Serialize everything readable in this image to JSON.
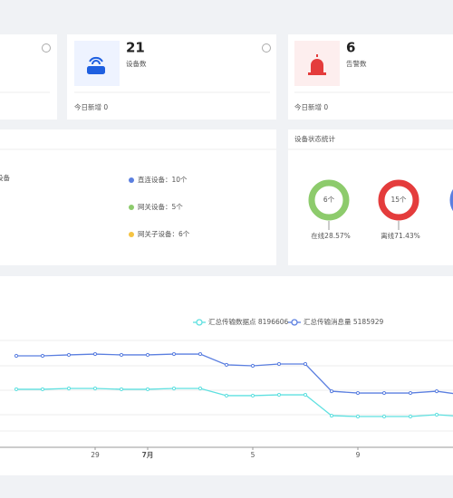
{
  "stat_cards": [
    {
      "value": "21",
      "label": "设备数",
      "today": "今日新增 0"
    },
    {
      "value": "6",
      "label": "告警数",
      "today": "今日新增 0"
    }
  ],
  "device_panel": {
    "partial_label": "设备",
    "legend": [
      "直连设备：10个",
      "网关设备：5个",
      "网关子设备：6个"
    ]
  },
  "status_panel": {
    "title": "设备状态统计",
    "items": [
      {
        "count": "6个",
        "label": "在线28.57%"
      },
      {
        "count": "15个",
        "label": "离线71.43%"
      }
    ]
  },
  "chart_data": {
    "type": "line",
    "categories": [
      null,
      null,
      null,
      "29",
      null,
      "7月",
      null,
      null,
      null,
      "5",
      null,
      null,
      null,
      "9",
      null,
      null,
      null,
      null
    ],
    "series": [
      {
        "name": "汇总传输数据点 8196606",
        "color": "#5ee0e0",
        "values": [
          3.56,
          3.56,
          3.61,
          3.61,
          3.56,
          3.56,
          3.61,
          3.61,
          3.17,
          3.17,
          3.22,
          3.22,
          1.94,
          1.89,
          1.89,
          1.89,
          2.0,
          1.89
        ]
      },
      {
        "name": "汇总传输消息量 5185929",
        "color": "#5b7fe0",
        "values": [
          5.61,
          5.61,
          5.67,
          5.72,
          5.67,
          5.67,
          5.72,
          5.72,
          5.06,
          5.0,
          5.11,
          5.11,
          3.44,
          3.33,
          3.33,
          3.33,
          3.44,
          3.22
        ]
      }
    ],
    "ylim": [
      0,
      7
    ]
  }
}
